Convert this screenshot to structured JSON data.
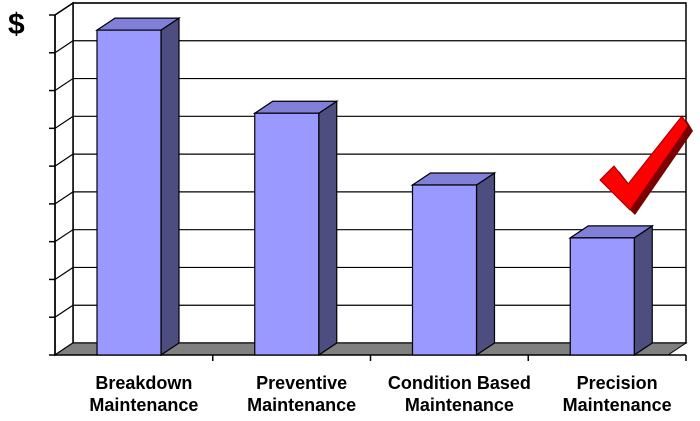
{
  "chart_data": {
    "type": "bar",
    "title": "",
    "ylabel": "$",
    "xlabel": "",
    "categories": [
      {
        "line1": "Breakdown",
        "line2": "Maintenance"
      },
      {
        "line1": "Preventive",
        "line2": "Maintenance"
      },
      {
        "line1": "Condition Based",
        "line2": "Maintenance"
      },
      {
        "line1": "Precision",
        "line2": "Maintenance"
      }
    ],
    "values": [
      8.6,
      6.4,
      4.5,
      3.1
    ],
    "ylim": [
      0,
      9
    ],
    "y_tick_count": 9,
    "grid": true,
    "three_d": true,
    "annotation": "checkmark-icon",
    "colors": {
      "bar_front": "#9999ff",
      "bar_side": "#4d4d80",
      "bar_top": "#8080d9",
      "floor": "#808080",
      "checkmark": "#ff0000"
    }
  }
}
